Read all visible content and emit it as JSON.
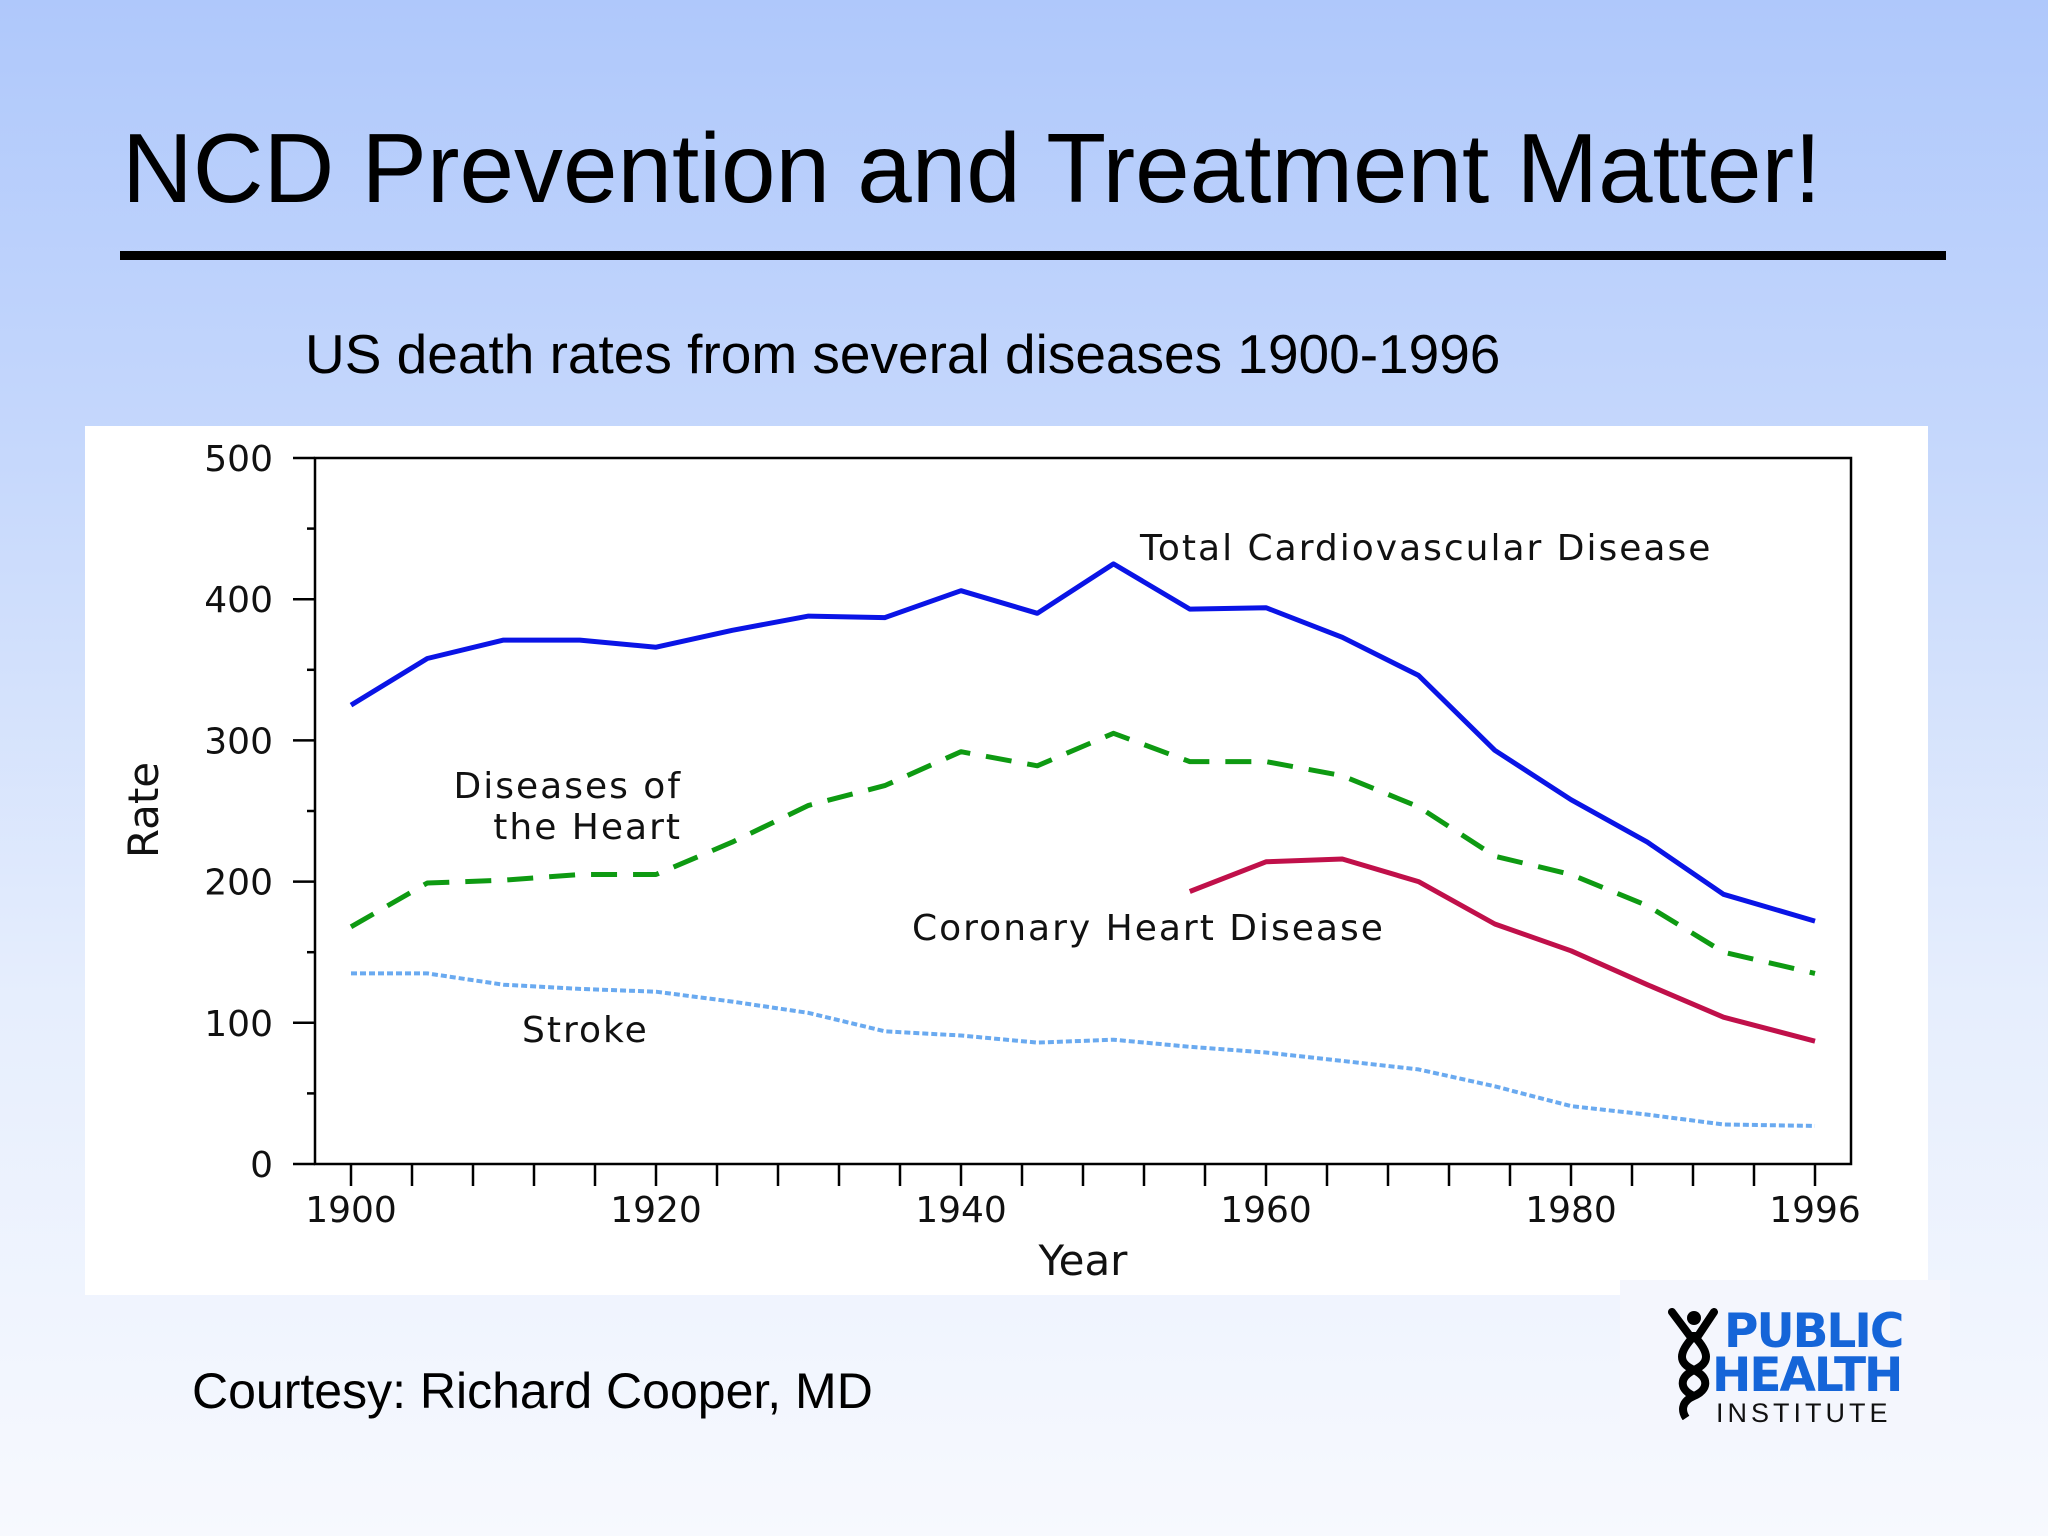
{
  "slide": {
    "title": "NCD Prevention and Treatment Matter!",
    "subtitle": "US death rates from several diseases 1900-1996",
    "courtesy": "Courtesy: Richard Cooper, MD",
    "logo": {
      "line1": "PUBLIC",
      "line2": "HEALTH",
      "line3": "INSTITUTE",
      "color": "#1565d8"
    }
  },
  "chart_data": {
    "type": "line",
    "xlabel": "Year",
    "ylabel": "Rate",
    "xlim": [
      1900,
      1996
    ],
    "ylim": [
      0,
      500
    ],
    "x_ticks": [
      1900,
      1920,
      1940,
      1960,
      1980,
      1996
    ],
    "y_ticks": [
      0,
      100,
      200,
      300,
      400,
      500
    ],
    "grid": false,
    "series": [
      {
        "name": "Total Cardiovascular Disease",
        "color": "#0a14e6",
        "style": "solid",
        "x": [
          1900,
          1905,
          1910,
          1915,
          1920,
          1925,
          1930,
          1935,
          1940,
          1945,
          1950,
          1955,
          1960,
          1965,
          1970,
          1975,
          1980,
          1985,
          1990,
          1996
        ],
        "y": [
          325,
          358,
          371,
          371,
          366,
          378,
          388,
          387,
          406,
          390,
          425,
          393,
          394,
          373,
          346,
          293,
          258,
          228,
          191,
          172
        ]
      },
      {
        "name": "Diseases of the Heart",
        "label_lines": [
          "Diseases of",
          "the Heart"
        ],
        "color": "#0e9a12",
        "style": "dashed",
        "x": [
          1900,
          1905,
          1910,
          1915,
          1920,
          1925,
          1930,
          1935,
          1940,
          1945,
          1950,
          1955,
          1960,
          1965,
          1970,
          1975,
          1980,
          1985,
          1990,
          1996
        ],
        "y": [
          168,
          199,
          201,
          205,
          205,
          228,
          254,
          268,
          292,
          282,
          305,
          285,
          285,
          275,
          253,
          218,
          205,
          183,
          150,
          135
        ]
      },
      {
        "name": "Coronary Heart Disease",
        "color": "#c0104a",
        "style": "solid",
        "x": [
          1955,
          1960,
          1965,
          1970,
          1975,
          1980,
          1985,
          1990,
          1996
        ],
        "y": [
          193,
          214,
          216,
          200,
          170,
          151,
          127,
          104,
          87
        ]
      },
      {
        "name": "Stroke",
        "color": "#6aaaf0",
        "style": "dotted",
        "x": [
          1900,
          1905,
          1910,
          1915,
          1920,
          1925,
          1930,
          1935,
          1940,
          1945,
          1950,
          1955,
          1960,
          1965,
          1970,
          1975,
          1980,
          1985,
          1990,
          1996
        ],
        "y": [
          135,
          135,
          127,
          124,
          122,
          115,
          107,
          94,
          91,
          86,
          88,
          83,
          79,
          73,
          67,
          55,
          41,
          35,
          28,
          27
        ]
      }
    ]
  }
}
